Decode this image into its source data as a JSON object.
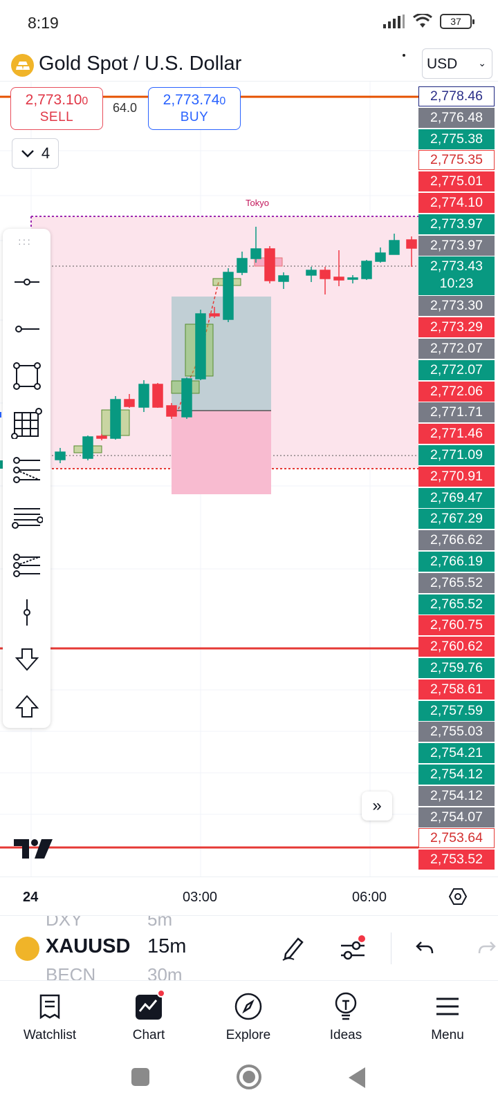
{
  "status_bar": {
    "time": "8:19",
    "battery": "37"
  },
  "header": {
    "title": "Gold Spot / U.S. Dollar",
    "currency": "USD",
    "symbol_icon": "gold-bars-icon"
  },
  "trade": {
    "sell_price": "2,773.10",
    "sell_price_small": "0",
    "sell_label": "SELL",
    "buy_price": "2,773.74",
    "buy_price_small": "0",
    "buy_label": "BUY",
    "spread": "64.0"
  },
  "layers": {
    "count": "4"
  },
  "session_label": "Tokyo",
  "price_axis": [
    {
      "label": "2,778.46",
      "style": "outline-blue"
    },
    {
      "label": "2,776.48",
      "style": "gray"
    },
    {
      "label": "2,775.38",
      "style": "green"
    },
    {
      "label": "2,775.35",
      "style": "outline-red"
    },
    {
      "label": "2,775.01",
      "style": "red"
    },
    {
      "label": "2,774.10",
      "style": "red"
    },
    {
      "label": "2,773.97",
      "style": "green"
    },
    {
      "label": "2,773.97",
      "style": "gray"
    },
    {
      "label": "2,773.43",
      "style": "green",
      "countdown": "10:23"
    },
    {
      "label": "2,773.30",
      "style": "gray"
    },
    {
      "label": "2,773.29",
      "style": "red"
    },
    {
      "label": "2,772.07",
      "style": "gray"
    },
    {
      "label": "2,772.07",
      "style": "green"
    },
    {
      "label": "2,772.06",
      "style": "red"
    },
    {
      "label": "2,771.71",
      "style": "gray"
    },
    {
      "label": "2,771.46",
      "style": "red"
    },
    {
      "label": "2,771.09",
      "style": "green"
    },
    {
      "label": "2,770.91",
      "style": "red"
    },
    {
      "label": "2,769.47",
      "style": "green"
    },
    {
      "label": "2,767.29",
      "style": "green"
    },
    {
      "label": "2,766.62",
      "style": "gray"
    },
    {
      "label": "2,766.19",
      "style": "green"
    },
    {
      "label": "2,765.52",
      "style": "gray"
    },
    {
      "label": "2,765.52",
      "style": "green"
    },
    {
      "label": "2,760.75",
      "style": "red"
    },
    {
      "label": "2,760.62",
      "style": "red"
    },
    {
      "label": "2,759.76",
      "style": "green"
    },
    {
      "label": "2,758.61",
      "style": "red"
    },
    {
      "label": "2,757.59",
      "style": "green"
    },
    {
      "label": "2,755.03",
      "style": "gray"
    },
    {
      "label": "2,754.21",
      "style": "green"
    },
    {
      "label": "2,754.12",
      "style": "green"
    },
    {
      "label": "2,754.12",
      "style": "gray"
    },
    {
      "label": "2,754.07",
      "style": "gray"
    },
    {
      "label": "2,753.64",
      "style": "outline-red"
    },
    {
      "label": "2,753.52",
      "style": "red"
    }
  ],
  "time_axis": {
    "labels": [
      "24",
      "03:00",
      "06:00"
    ]
  },
  "drawing_tools": [
    "horizontal-line-icon",
    "horizontal-ray-icon",
    "rectangle-icon",
    "grid-icon",
    "pitchfork-icon",
    "parallel-channel-icon",
    "fib-retracement-icon",
    "vertical-line-icon",
    "arrow-down-icon",
    "arrow-up-icon"
  ],
  "symbol_bar": {
    "ghost_prev_symbol": "DXY",
    "ghost_prev_interval": "5m",
    "symbol": "XAUUSD",
    "interval": "15m",
    "ghost_next_symbol": "BECN",
    "ghost_next_interval": "30m"
  },
  "bottom_nav": [
    {
      "label": "Watchlist",
      "icon": "watchlist-icon"
    },
    {
      "label": "Chart",
      "icon": "chart-icon",
      "active": true
    },
    {
      "label": "Explore",
      "icon": "compass-icon"
    },
    {
      "label": "Ideas",
      "icon": "lightbulb-icon"
    },
    {
      "label": "Menu",
      "icon": "hamburger-icon"
    }
  ],
  "colors": {
    "up": "#089981",
    "down": "#f23645",
    "buy": "#2962ff",
    "sell": "#e03646",
    "session_fill": "#fce4ec",
    "line_orange": "#e65100"
  }
}
